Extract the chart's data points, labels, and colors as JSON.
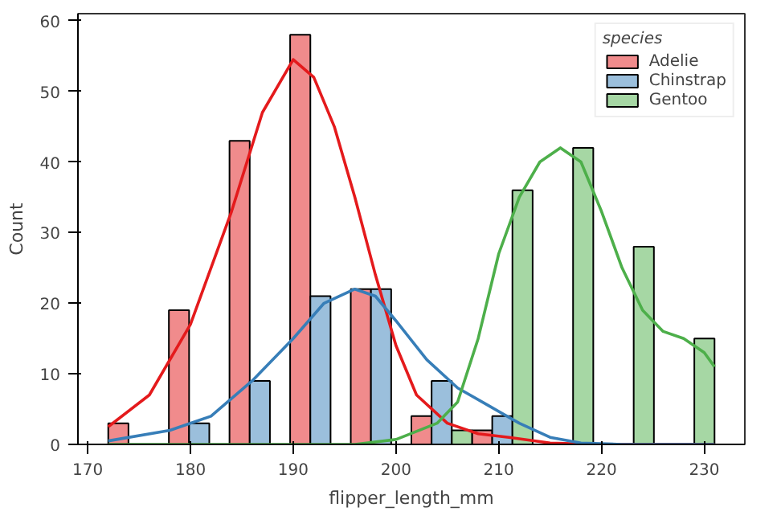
{
  "chart_data": {
    "type": "histogram",
    "xlabel": "flipper_length_mm",
    "ylabel": "Count",
    "legend_title": "species",
    "legend": "top right",
    "grid": false,
    "bins": [
      172,
      177.9,
      183.8,
      189.7,
      195.6,
      201.5,
      207.4,
      213.3,
      219.2,
      225.1,
      231
    ],
    "xlim": [
      169.05,
      233.95
    ],
    "xticks": [
      170,
      180,
      190,
      200,
      210,
      220,
      230
    ],
    "ylim": [
      0,
      61
    ],
    "yticks": [
      0,
      10,
      20,
      30,
      40,
      50,
      60
    ],
    "series": [
      {
        "name": "Adelie",
        "color": "#f08b8c",
        "values": [
          3,
          19,
          43,
          58,
          22,
          4,
          2,
          0,
          0,
          0
        ]
      },
      {
        "name": "Chinstrap",
        "color": "#9bbfdc",
        "values": [
          0,
          3,
          9,
          21,
          22,
          9,
          4,
          0,
          0,
          0
        ]
      },
      {
        "name": "Gentoo",
        "color": "#a6d7a4",
        "values": [
          0,
          0,
          0,
          0,
          0,
          2,
          36,
          42,
          28,
          15
        ]
      },
      {
        "type": "line",
        "color": "#e41a1c",
        "x": [
          172,
          176,
          180,
          184,
          187,
          190,
          192,
          194,
          196,
          198,
          200,
          202,
          205,
          208,
          211,
          215,
          220,
          231
        ],
        "values": [
          2.5,
          7,
          17,
          33,
          47,
          54.5,
          52,
          45,
          35,
          24,
          14,
          7,
          3,
          1.5,
          1,
          0.2,
          0,
          0
        ]
      },
      {
        "type": "line",
        "color": "#377eb8",
        "x": [
          172,
          178,
          182,
          186,
          190,
          193,
          196,
          198,
          200,
          203,
          206,
          209,
          212,
          215,
          218,
          222,
          231
        ],
        "values": [
          0.5,
          2,
          4,
          9,
          15,
          20,
          22,
          21,
          17.5,
          12,
          8,
          5.5,
          3,
          1,
          0.2,
          0,
          0
        ]
      },
      {
        "type": "line",
        "color": "#4daf4a",
        "x": [
          172,
          196,
          200,
          204,
          206,
          208,
          210,
          212,
          214,
          216,
          218,
          220,
          222,
          224,
          226,
          228,
          230,
          231
        ],
        "values": [
          0,
          0,
          0.7,
          3,
          6,
          15,
          27,
          35,
          40,
          42,
          40,
          33,
          25,
          19,
          16,
          15,
          13,
          11
        ]
      }
    ]
  }
}
